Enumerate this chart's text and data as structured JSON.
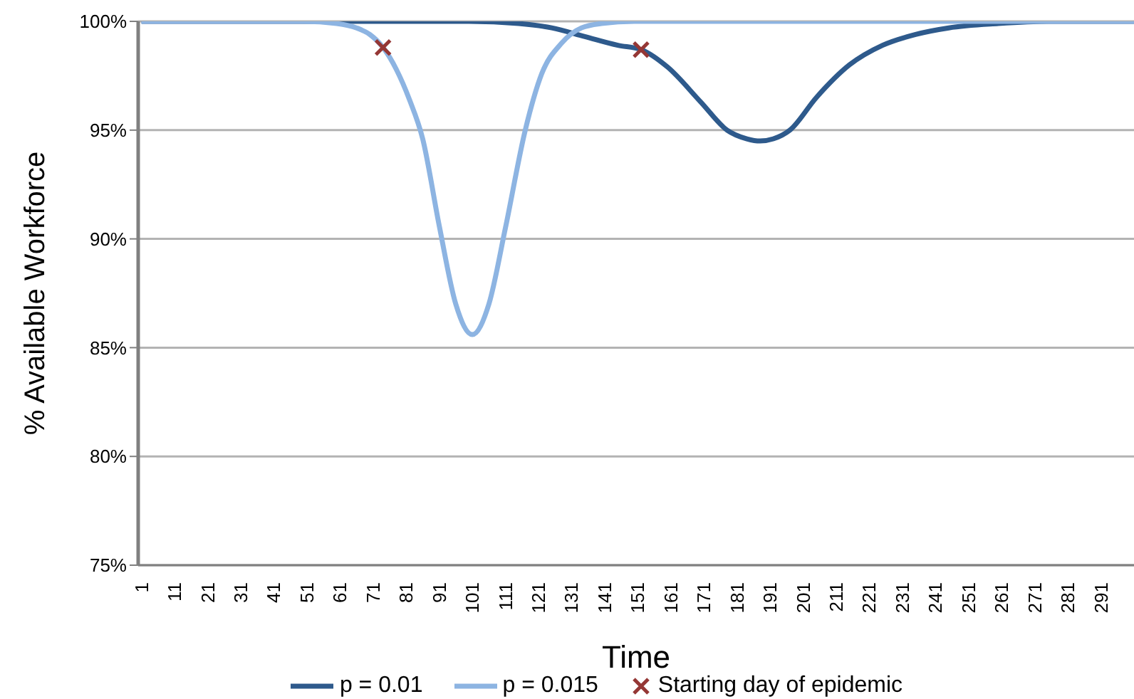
{
  "chart_data": {
    "type": "line",
    "xlabel": "Time",
    "ylabel": "% Available Workforce",
    "xlim": [
      0,
      301
    ],
    "xticks": [
      1,
      11,
      21,
      31,
      41,
      51,
      61,
      71,
      81,
      91,
      101,
      111,
      121,
      131,
      141,
      151,
      161,
      171,
      181,
      191,
      201,
      211,
      221,
      231,
      241,
      251,
      261,
      271,
      281,
      291
    ],
    "ylim": [
      75,
      100
    ],
    "yticks": [
      {
        "value": 75,
        "label": "75%"
      },
      {
        "value": 80,
        "label": "80%"
      },
      {
        "value": 85,
        "label": "85%"
      },
      {
        "value": 90,
        "label": "90%"
      },
      {
        "value": 95,
        "label": "95%"
      },
      {
        "value": 100,
        "label": "100%"
      }
    ],
    "grid": "y",
    "legend": "bottom",
    "series": [
      {
        "name": "p = 0.01",
        "color": "#2e5a8c",
        "marker": "none",
        "x": [
          1,
          100,
          115,
          125,
          135,
          145,
          152,
          160,
          170,
          178,
          184,
          188,
          192,
          197,
          205,
          215,
          225,
          235,
          245,
          260,
          275,
          301
        ],
        "values": [
          100,
          100,
          99.9,
          99.7,
          99.3,
          98.9,
          98.7,
          97.9,
          96.3,
          95,
          94.6,
          94.5,
          94.6,
          95,
          96.5,
          98,
          98.9,
          99.4,
          99.7,
          99.9,
          100,
          100
        ]
      },
      {
        "name": "p = 0.015",
        "color": "#8db4e2",
        "marker": "none",
        "x": [
          1,
          50,
          60,
          66,
          70,
          74,
          78,
          82,
          86,
          91,
          96,
          101,
          106,
          111,
          117,
          122,
          128,
          134,
          140,
          150,
          301
        ],
        "values": [
          100,
          100,
          99.9,
          99.7,
          99.4,
          98.8,
          97.8,
          96.4,
          94.6,
          90.6,
          87,
          85.6,
          87,
          90.5,
          95,
          97.6,
          99,
          99.7,
          99.9,
          100,
          100
        ]
      },
      {
        "name": "Starting day of epidemic",
        "color": "#953735",
        "type": "scatter",
        "marker": "cross",
        "x": [
          74,
          152
        ],
        "values": [
          98.8,
          98.7
        ]
      }
    ]
  }
}
